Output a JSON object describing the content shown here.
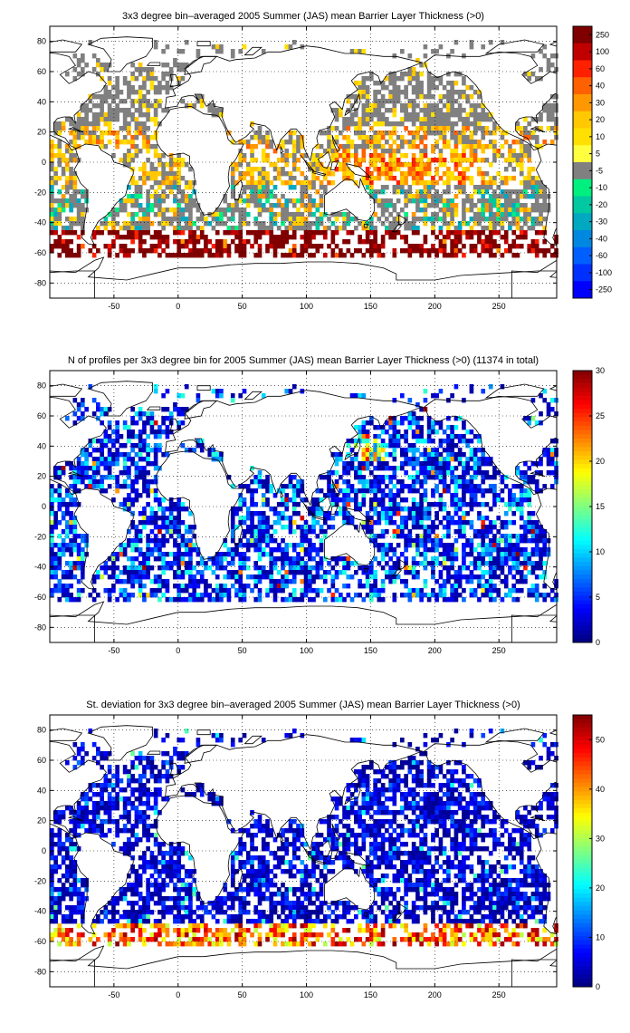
{
  "chart_data": [
    {
      "type": "heatmap",
      "title": "3x3 degree bin–averaged 2005 Summer (JAS) mean Barrier Layer Thickness (>0)",
      "x_ticks": [
        "-50",
        "0",
        "50",
        "100",
        "150",
        "200",
        "250"
      ],
      "x_tick_values": [
        -50,
        0,
        50,
        100,
        150,
        200,
        250
      ],
      "y_ticks": [
        "80",
        "60",
        "40",
        "20",
        "0",
        "-20",
        "-40",
        "-60",
        "-80"
      ],
      "y_tick_values": [
        80,
        60,
        40,
        20,
        0,
        -20,
        -40,
        -60,
        -80
      ],
      "xlim": [
        -100,
        295
      ],
      "ylim": [
        -90,
        90
      ],
      "grid": true,
      "colorbar_labels": [
        "250",
        "100",
        "60",
        "40",
        "30",
        "20",
        "10",
        "5",
        "-5",
        "-10",
        "-20",
        "-30",
        "-40",
        "-60",
        "-100",
        "-250"
      ],
      "colorbar_colors": [
        "#800000",
        "#c00000",
        "#ff2000",
        "#ff6000",
        "#ff9800",
        "#ffc800",
        "#ffe000",
        "#ffff40",
        "#808080",
        "#00f080",
        "#00c8a0",
        "#00a8c0",
        "#0088e0",
        "#0060ff",
        "#0030ff",
        "#0000ff"
      ],
      "bin_size_deg": 3
    },
    {
      "type": "heatmap",
      "title": "N of profiles per 3x3 degree bin for 2005 Summer (JAS) mean Barrier Layer Thickness (>0) (11374 in total)",
      "x_ticks": [
        "-50",
        "0",
        "50",
        "100",
        "150",
        "200",
        "250"
      ],
      "x_tick_values": [
        -50,
        0,
        50,
        100,
        150,
        200,
        250
      ],
      "y_ticks": [
        "80",
        "60",
        "40",
        "20",
        "0",
        "-20",
        "-40",
        "-60",
        "-80"
      ],
      "y_tick_values": [
        80,
        60,
        40,
        20,
        0,
        -20,
        -40,
        -60,
        -80
      ],
      "xlim": [
        -100,
        295
      ],
      "ylim": [
        -90,
        90
      ],
      "grid": true,
      "colorbar_range": [
        0,
        30
      ],
      "colorbar_labels": [
        "30",
        "25",
        "20",
        "15",
        "10",
        "5",
        "0"
      ],
      "bin_size_deg": 3
    },
    {
      "type": "heatmap",
      "title": "St. deviation for 3x3 degree bin–averaged 2005 Summer (JAS) mean Barrier Layer Thickness (>0)",
      "x_ticks": [
        "-50",
        "0",
        "50",
        "100",
        "150",
        "200",
        "250"
      ],
      "x_tick_values": [
        -50,
        0,
        50,
        100,
        150,
        200,
        250
      ],
      "y_ticks": [
        "80",
        "60",
        "40",
        "20",
        "0",
        "-20",
        "-40",
        "-60",
        "-80"
      ],
      "y_tick_values": [
        80,
        60,
        40,
        20,
        0,
        -20,
        -40,
        -60,
        -80
      ],
      "xlim": [
        -100,
        295
      ],
      "ylim": [
        -90,
        90
      ],
      "grid": true,
      "colorbar_range": [
        0,
        55
      ],
      "colorbar_labels": [
        "50",
        "40",
        "30",
        "20",
        "10",
        "0"
      ],
      "bin_size_deg": 3
    }
  ]
}
